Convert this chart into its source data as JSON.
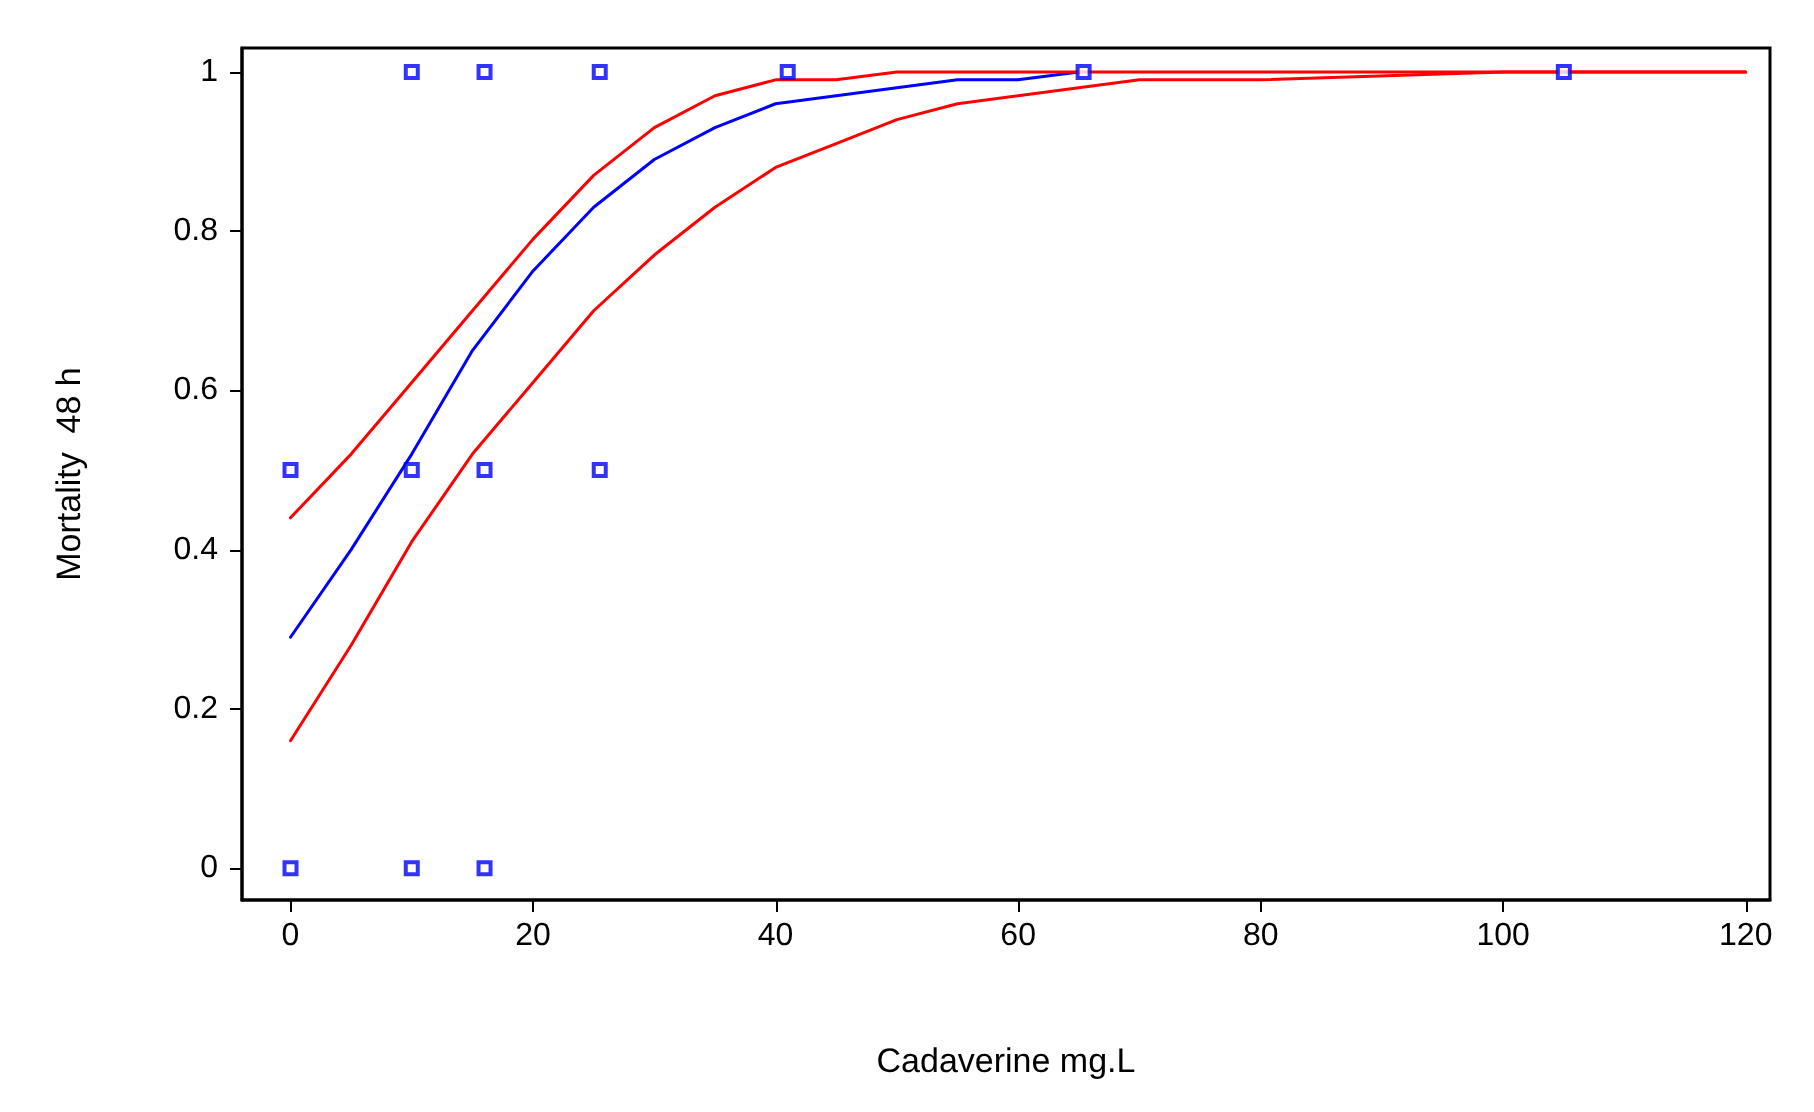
{
  "chart_data": {
    "type": "scatter",
    "xlabel": "Cadaverine mg.L",
    "ylabel": "Mortality  48 h",
    "xlim": [
      -4,
      122
    ],
    "xticks": [
      0,
      20,
      40,
      60,
      80,
      100,
      120
    ],
    "ylim": [
      -0.04,
      1.03
    ],
    "yticks": [
      0,
      0.2,
      0.4,
      0.6,
      0.8,
      1
    ],
    "grid": false,
    "series": [
      {
        "color": "#0000ff",
        "marker": "square",
        "x": [
          0,
          0,
          10,
          10,
          10,
          16,
          16,
          16,
          25.5,
          25.5,
          41,
          65.4,
          105
        ],
        "values": [
          0.5,
          0,
          1,
          0.5,
          0,
          1,
          0.5,
          0,
          1,
          0.5,
          1,
          1,
          1
        ]
      },
      {
        "type": "line",
        "color": "#0000ff",
        "marker": "none",
        "line_style": "solid",
        "x": [
          0,
          5,
          10,
          15,
          20,
          25,
          30,
          35,
          40,
          45,
          50,
          55,
          60,
          65
        ],
        "values": [
          0.29,
          0.4,
          0.52,
          0.65,
          0.75,
          0.83,
          0.89,
          0.93,
          0.96,
          0.97,
          0.98,
          0.99,
          0.99,
          1
        ]
      },
      {
        "type": "line",
        "color": "#ff0000",
        "marker": "none",
        "line_style": "solid",
        "x": [
          0,
          5,
          10,
          15,
          20,
          25,
          30,
          35,
          40,
          45,
          50,
          60,
          80,
          100,
          120
        ],
        "values": [
          0.44,
          0.52,
          0.61,
          0.7,
          0.79,
          0.87,
          0.93,
          0.97,
          0.99,
          0.99,
          1,
          1,
          1,
          1,
          1
        ]
      },
      {
        "type": "line",
        "color": "#ff0000",
        "marker": "none",
        "line_style": "solid",
        "x": [
          0,
          5,
          10,
          15,
          20,
          25,
          30,
          35,
          40,
          45,
          50,
          55,
          60,
          70,
          80,
          100,
          120
        ],
        "values": [
          0.16,
          0.28,
          0.41,
          0.52,
          0.61,
          0.7,
          0.77,
          0.83,
          0.88,
          0.91,
          0.94,
          0.96,
          0.97,
          0.99,
          0.99,
          1,
          1
        ]
      }
    ]
  }
}
